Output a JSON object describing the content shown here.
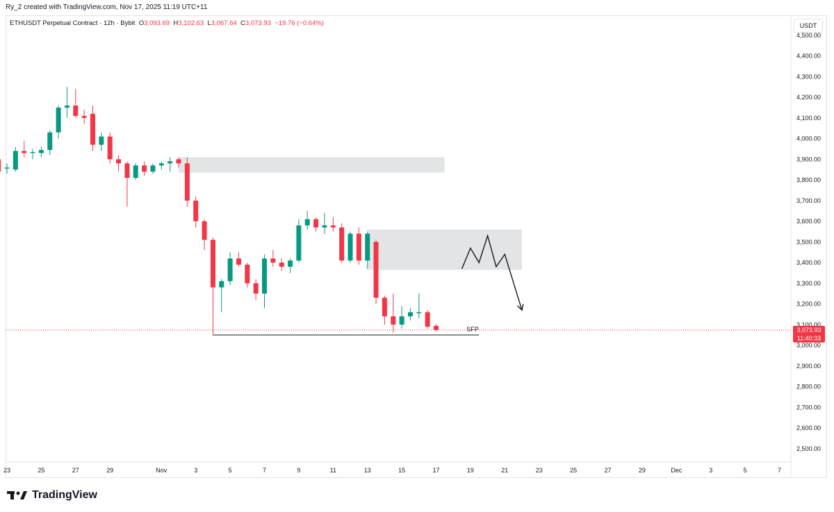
{
  "credit": "Ry_2 created with TradingView.com, Nov 17, 2025 11:19 UTC+11",
  "legend": {
    "symbol": "ETHUSDT Perpetual Contract · 12h · Bybit",
    "o_label": "O",
    "o": "3,093.69",
    "h_label": "H",
    "h": "3,102.63",
    "l_label": "L",
    "l": "3,067.64",
    "c_label": "C",
    "c": "3,073.93",
    "change": "−19.76 (−0.64%)"
  },
  "currency": "USDT",
  "price_badge": {
    "price": "3,073.93",
    "countdown": "11:40:33"
  },
  "colors": {
    "up": "#089981",
    "down": "#f23645",
    "zone": "#e3e4e6",
    "line": "#131722"
  },
  "footer": {
    "brand": "TradingView",
    "logo_icon": "tradingview-logo-icon"
  },
  "chart_data": {
    "type": "candlestick",
    "y_range": [
      2450,
      4550
    ],
    "y_ticks": [
      "2,500.00",
      "2,600.00",
      "2,700.00",
      "2,800.00",
      "2,900.00",
      "3,000.00",
      "3,100.00",
      "3,200.00",
      "3,300.00",
      "3,400.00",
      "3,500.00",
      "3,600.00",
      "3,700.00",
      "3,800.00",
      "3,900.00",
      "4,000.00",
      "4,100.00",
      "4,200.00",
      "4,300.00",
      "4,400.00",
      "4,500.00"
    ],
    "y_tick_values": [
      2500,
      2600,
      2700,
      2800,
      2900,
      3000,
      3100,
      3200,
      3300,
      3400,
      3500,
      3600,
      3700,
      3800,
      3900,
      4000,
      4100,
      4200,
      4300,
      4400,
      4500
    ],
    "x_ticks": [
      {
        "label": "23",
        "day": 0
      },
      {
        "label": "25",
        "day": 2
      },
      {
        "label": "27",
        "day": 4
      },
      {
        "label": "29",
        "day": 6
      },
      {
        "label": "Nov",
        "day": 9
      },
      {
        "label": "3",
        "day": 11
      },
      {
        "label": "5",
        "day": 13
      },
      {
        "label": "7",
        "day": 15
      },
      {
        "label": "9",
        "day": 17
      },
      {
        "label": "11",
        "day": 19
      },
      {
        "label": "13",
        "day": 21
      },
      {
        "label": "15",
        "day": 23
      },
      {
        "label": "17",
        "day": 25
      },
      {
        "label": "19",
        "day": 27
      },
      {
        "label": "21",
        "day": 29
      },
      {
        "label": "23",
        "day": 31
      },
      {
        "label": "25",
        "day": 33
      },
      {
        "label": "27",
        "day": 35
      },
      {
        "label": "29",
        "day": 37
      },
      {
        "label": "Dec",
        "day": 39
      },
      {
        "label": "3",
        "day": 41
      },
      {
        "label": "5",
        "day": 43
      },
      {
        "label": "7",
        "day": 45
      }
    ],
    "candles": [
      {
        "t": -0.5,
        "o": 3900,
        "h": 3910,
        "l": 3830,
        "c": 3840
      },
      {
        "t": 0.0,
        "o": 3860,
        "h": 3880,
        "l": 3830,
        "c": 3860
      },
      {
        "t": 0.5,
        "o": 3850,
        "h": 3960,
        "l": 3840,
        "c": 3940
      },
      {
        "t": 1.0,
        "o": 3940,
        "h": 3990,
        "l": 3910,
        "c": 3930
      },
      {
        "t": 1.5,
        "o": 3930,
        "h": 3950,
        "l": 3900,
        "c": 3935
      },
      {
        "t": 2.0,
        "o": 3930,
        "h": 3960,
        "l": 3910,
        "c": 3945
      },
      {
        "t": 2.5,
        "o": 3945,
        "h": 4040,
        "l": 3920,
        "c": 4030
      },
      {
        "t": 3.0,
        "o": 4030,
        "h": 4160,
        "l": 4000,
        "c": 4150
      },
      {
        "t": 3.5,
        "o": 4150,
        "h": 4250,
        "l": 4100,
        "c": 4160
      },
      {
        "t": 4.0,
        "o": 4160,
        "h": 4240,
        "l": 4100,
        "c": 4110
      },
      {
        "t": 4.5,
        "o": 4110,
        "h": 4140,
        "l": 4070,
        "c": 4100
      },
      {
        "t": 5.0,
        "o": 4120,
        "h": 4160,
        "l": 3940,
        "c": 3970
      },
      {
        "t": 5.5,
        "o": 3970,
        "h": 4030,
        "l": 3940,
        "c": 4010
      },
      {
        "t": 6.0,
        "o": 4010,
        "h": 4030,
        "l": 3880,
        "c": 3900
      },
      {
        "t": 6.5,
        "o": 3900,
        "h": 3920,
        "l": 3840,
        "c": 3880
      },
      {
        "t": 7.0,
        "o": 3880,
        "h": 3890,
        "l": 3670,
        "c": 3810
      },
      {
        "t": 7.5,
        "o": 3810,
        "h": 3880,
        "l": 3800,
        "c": 3870
      },
      {
        "t": 8.0,
        "o": 3870,
        "h": 3890,
        "l": 3820,
        "c": 3840
      },
      {
        "t": 8.5,
        "o": 3840,
        "h": 3880,
        "l": 3830,
        "c": 3870
      },
      {
        "t": 9.0,
        "o": 3870,
        "h": 3890,
        "l": 3850,
        "c": 3880
      },
      {
        "t": 9.5,
        "o": 3880,
        "h": 3910,
        "l": 3840,
        "c": 3890
      },
      {
        "t": 10.0,
        "o": 3900,
        "h": 3910,
        "l": 3860,
        "c": 3880
      },
      {
        "t": 10.5,
        "o": 3880,
        "h": 3910,
        "l": 3670,
        "c": 3700
      },
      {
        "t": 11.0,
        "o": 3700,
        "h": 3720,
        "l": 3570,
        "c": 3600
      },
      {
        "t": 11.5,
        "o": 3600,
        "h": 3610,
        "l": 3460,
        "c": 3510
      },
      {
        "t": 12.0,
        "o": 3510,
        "h": 3520,
        "l": 3050,
        "c": 3280
      },
      {
        "t": 12.5,
        "o": 3280,
        "h": 3320,
        "l": 3160,
        "c": 3310
      },
      {
        "t": 13.0,
        "o": 3310,
        "h": 3450,
        "l": 3290,
        "c": 3420
      },
      {
        "t": 13.5,
        "o": 3420,
        "h": 3450,
        "l": 3380,
        "c": 3390
      },
      {
        "t": 14.0,
        "o": 3390,
        "h": 3400,
        "l": 3280,
        "c": 3300
      },
      {
        "t": 14.5,
        "o": 3300,
        "h": 3320,
        "l": 3220,
        "c": 3250
      },
      {
        "t": 15.0,
        "o": 3250,
        "h": 3440,
        "l": 3180,
        "c": 3420
      },
      {
        "t": 15.5,
        "o": 3420,
        "h": 3460,
        "l": 3380,
        "c": 3400
      },
      {
        "t": 16.0,
        "o": 3400,
        "h": 3420,
        "l": 3360,
        "c": 3380
      },
      {
        "t": 16.5,
        "o": 3380,
        "h": 3420,
        "l": 3350,
        "c": 3410
      },
      {
        "t": 17.0,
        "o": 3410,
        "h": 3610,
        "l": 3400,
        "c": 3580
      },
      {
        "t": 17.5,
        "o": 3580,
        "h": 3650,
        "l": 3560,
        "c": 3610
      },
      {
        "t": 18.0,
        "o": 3610,
        "h": 3620,
        "l": 3550,
        "c": 3570
      },
      {
        "t": 18.5,
        "o": 3570,
        "h": 3640,
        "l": 3540,
        "c": 3580
      },
      {
        "t": 19.0,
        "o": 3580,
        "h": 3620,
        "l": 3550,
        "c": 3570
      },
      {
        "t": 19.5,
        "o": 3570,
        "h": 3590,
        "l": 3400,
        "c": 3410
      },
      {
        "t": 20.0,
        "o": 3410,
        "h": 3550,
        "l": 3400,
        "c": 3540
      },
      {
        "t": 20.5,
        "o": 3540,
        "h": 3570,
        "l": 3390,
        "c": 3410
      },
      {
        "t": 21.0,
        "o": 3410,
        "h": 3550,
        "l": 3370,
        "c": 3540
      },
      {
        "t": 21.5,
        "o": 3500,
        "h": 3510,
        "l": 3200,
        "c": 3230
      },
      {
        "t": 22.0,
        "o": 3230,
        "h": 3240,
        "l": 3100,
        "c": 3140
      },
      {
        "t": 22.5,
        "o": 3140,
        "h": 3250,
        "l": 3060,
        "c": 3100
      },
      {
        "t": 23.0,
        "o": 3100,
        "h": 3190,
        "l": 3080,
        "c": 3140
      },
      {
        "t": 23.5,
        "o": 3140,
        "h": 3180,
        "l": 3120,
        "c": 3160
      },
      {
        "t": 24.0,
        "o": 3160,
        "h": 3250,
        "l": 3130,
        "c": 3160
      },
      {
        "t": 24.5,
        "o": 3160,
        "h": 3170,
        "l": 3080,
        "c": 3090
      },
      {
        "t": 25.0,
        "o": 3094,
        "h": 3103,
        "l": 3068,
        "c": 3074
      }
    ],
    "zones": [
      {
        "t_start": 10.0,
        "t_end": 25.5,
        "top": 3910,
        "bottom": 3835
      },
      {
        "t_start": 21.0,
        "t_end": 30.0,
        "top": 3560,
        "bottom": 3365
      }
    ],
    "sfp_line": {
      "t_start": 12.0,
      "t_end": 27.5,
      "value": 3050,
      "label": "SFP"
    },
    "projection_path": [
      {
        "t": 26.5,
        "v": 3370
      },
      {
        "t": 27.0,
        "v": 3470
      },
      {
        "t": 27.5,
        "v": 3400
      },
      {
        "t": 28.0,
        "v": 3530
      },
      {
        "t": 28.5,
        "v": 3380
      },
      {
        "t": 29.0,
        "v": 3440
      },
      {
        "t": 30.0,
        "v": 3170
      }
    ],
    "last_price": 3073.93
  }
}
